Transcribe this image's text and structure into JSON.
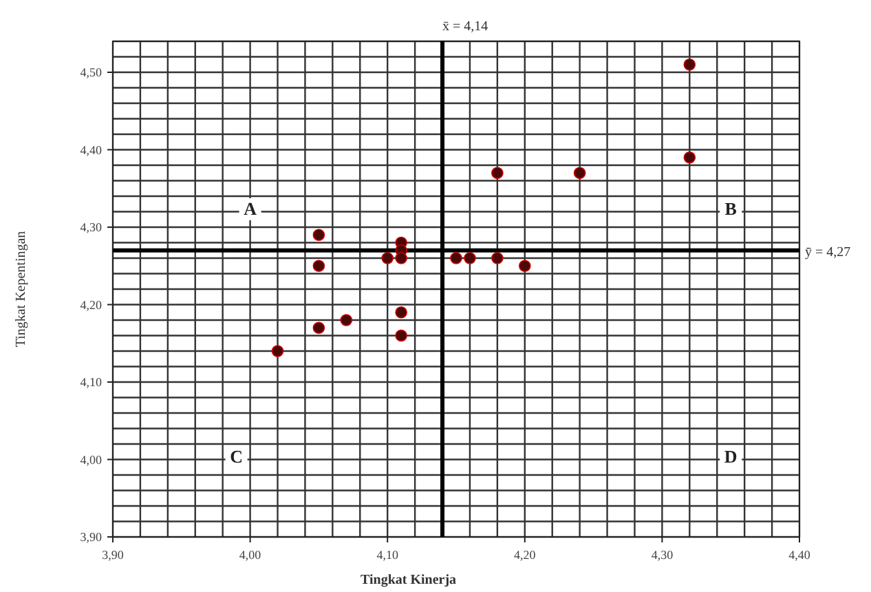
{
  "chart_data": {
    "type": "scatter",
    "xlabel": "Tingkat Kinerja",
    "ylabel": "Tingkat Kepentingan",
    "x": [
      4.02,
      4.05,
      4.05,
      4.05,
      4.07,
      4.1,
      4.11,
      4.11,
      4.11,
      4.11,
      4.11,
      4.15,
      4.16,
      4.18,
      4.2,
      4.18,
      4.24,
      4.32,
      4.32
    ],
    "values": [
      4.14,
      4.25,
      4.29,
      4.17,
      4.18,
      4.26,
      4.28,
      4.27,
      4.26,
      4.19,
      4.16,
      4.26,
      4.26,
      4.26,
      4.25,
      4.37,
      4.37,
      4.39,
      4.51
    ],
    "color": "#4a0808",
    "marker": "circle",
    "grid": true,
    "xlim": [
      3.9,
      4.4
    ],
    "xticks": [
      {
        "value": 3.9,
        "label": "3,90"
      },
      {
        "value": 4.0,
        "label": "4,00"
      },
      {
        "value": 4.1,
        "label": "4,10"
      },
      {
        "value": 4.2,
        "label": "4,20"
      },
      {
        "value": 4.3,
        "label": "4,30"
      },
      {
        "value": 4.4,
        "label": "4,40"
      }
    ],
    "ylim": [
      3.9,
      4.54
    ],
    "yticks": [
      {
        "value": 3.9,
        "label": "3,90"
      },
      {
        "value": 4.0,
        "label": "4,00"
      },
      {
        "value": 4.1,
        "label": "4,10"
      },
      {
        "value": 4.2,
        "label": "4,20"
      },
      {
        "value": 4.3,
        "label": "4,30"
      },
      {
        "value": 4.4,
        "label": "4,40"
      },
      {
        "value": 4.5,
        "label": "4,50"
      }
    ],
    "ref_lines": [
      {
        "axis": "x",
        "value": 4.14,
        "label": "x̄ = 4,14"
      },
      {
        "axis": "y",
        "value": 4.27,
        "label": "ȳ = 4,27"
      }
    ],
    "annotations": [
      "A",
      "B",
      "C",
      "D"
    ]
  }
}
